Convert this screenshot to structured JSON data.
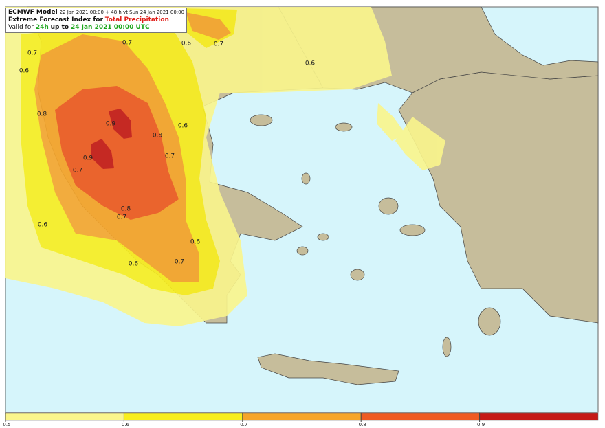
{
  "header": {
    "line1": {
      "model": "ECMWF Model",
      "info": "22 Jan 2021 00:00 + 48 h vt Sun 24 Jan 2021 00:00"
    },
    "line2": {
      "prefix": "Extreme Forecast Index for",
      "highlight": "Total Precipitation"
    },
    "line3": {
      "prefix": "Valid for",
      "period": "24h",
      "mid": "up to",
      "valid": "24 Jan 2021 00:00 UTC"
    }
  },
  "contour_labels": [
    "0.7",
    "0.6",
    "0.7",
    "0.6",
    "0.7",
    "0.6",
    "0.8",
    "0.9",
    "0.6",
    "0.8",
    "0.9",
    "0.7",
    "0.7",
    "0.8",
    "0.7",
    "0.6",
    "0.6",
    "0.7",
    "0.6"
  ],
  "colorbar": {
    "ticks": [
      0.5,
      0.6,
      0.7,
      0.8,
      0.9
    ],
    "colors": [
      "#faf58c",
      "#f8ee1e",
      "#f6a52a",
      "#ef5b22",
      "#c51a17"
    ]
  }
}
